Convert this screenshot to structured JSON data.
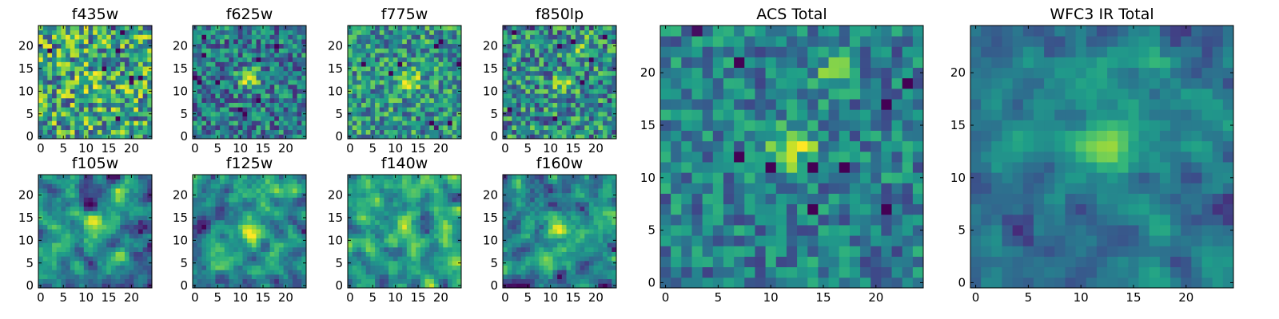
{
  "figure": {
    "background": "#ffffff",
    "colormap": "viridis"
  },
  "chart_data": [
    {
      "type": "heatmap",
      "title": "f435w",
      "size": 25,
      "xticks": [
        0,
        5,
        10,
        15,
        20
      ],
      "yticks": [
        0,
        5,
        10,
        15,
        20
      ],
      "xlim": [
        0,
        24
      ],
      "ylim": [
        0,
        24
      ],
      "seed": 11,
      "noise": 0.55,
      "smooth": 0,
      "sources": [
        {
          "x": 12,
          "y": 12,
          "amp": 0.15,
          "sigma": 2.0
        }
      ],
      "vmin": -0.2,
      "vmax": 1.2,
      "base": 0.62
    },
    {
      "type": "heatmap",
      "title": "f625w",
      "size": 25,
      "xticks": [
        0,
        5,
        10,
        15,
        20
      ],
      "yticks": [
        0,
        5,
        10,
        15,
        20
      ],
      "xlim": [
        0,
        24
      ],
      "ylim": [
        0,
        24
      ],
      "seed": 23,
      "noise": 0.45,
      "smooth": 0,
      "sources": [
        {
          "x": 12,
          "y": 13,
          "amp": 0.8,
          "sigma": 1.6
        }
      ],
      "vmin": -0.2,
      "vmax": 1.3,
      "base": 0.42
    },
    {
      "type": "heatmap",
      "title": "f775w",
      "size": 25,
      "xticks": [
        0,
        5,
        10,
        15,
        20
      ],
      "yticks": [
        0,
        5,
        10,
        15,
        20
      ],
      "xlim": [
        0,
        24
      ],
      "ylim": [
        0,
        24
      ],
      "seed": 37,
      "noise": 0.45,
      "smooth": 0,
      "sources": [
        {
          "x": 13,
          "y": 12,
          "amp": 0.7,
          "sigma": 1.6
        }
      ],
      "vmin": -0.2,
      "vmax": 1.3,
      "base": 0.58
    },
    {
      "type": "heatmap",
      "title": "f850lp",
      "size": 25,
      "xticks": [
        0,
        5,
        10,
        15,
        20
      ],
      "yticks": [
        0,
        5,
        10,
        15,
        20
      ],
      "xlim": [
        0,
        24
      ],
      "ylim": [
        0,
        24
      ],
      "seed": 41,
      "noise": 0.5,
      "smooth": 0,
      "sources": [
        {
          "x": 13,
          "y": 12,
          "amp": 0.5,
          "sigma": 1.6
        },
        {
          "x": 17,
          "y": 20,
          "amp": 0.35,
          "sigma": 1.5
        }
      ],
      "vmin": -0.2,
      "vmax": 1.3,
      "base": 0.52
    },
    {
      "type": "heatmap",
      "title": "f105w",
      "size": 25,
      "xticks": [
        0,
        5,
        10,
        15,
        20
      ],
      "yticks": [
        0,
        5,
        10,
        15,
        20
      ],
      "xlim": [
        0,
        24
      ],
      "ylim": [
        0,
        24
      ],
      "seed": 53,
      "noise": 0.55,
      "smooth": 1,
      "sources": [
        {
          "x": 12,
          "y": 13,
          "amp": 0.55,
          "sigma": 2.0
        },
        {
          "x": 18,
          "y": 21,
          "amp": 0.5,
          "sigma": 2.0
        }
      ],
      "vmin": -0.2,
      "vmax": 1.3,
      "base": 0.5
    },
    {
      "type": "heatmap",
      "title": "f125w",
      "size": 25,
      "xticks": [
        0,
        5,
        10,
        15,
        20
      ],
      "yticks": [
        0,
        5,
        10,
        15,
        20
      ],
      "xlim": [
        0,
        24
      ],
      "ylim": [
        0,
        24
      ],
      "seed": 67,
      "noise": 0.55,
      "smooth": 1,
      "sources": [
        {
          "x": 12,
          "y": 12,
          "amp": 0.6,
          "sigma": 2.0
        },
        {
          "x": 16,
          "y": 20,
          "amp": 0.35,
          "sigma": 2.0
        }
      ],
      "vmin": -0.2,
      "vmax": 1.3,
      "base": 0.55
    },
    {
      "type": "heatmap",
      "title": "f140w",
      "size": 25,
      "xticks": [
        0,
        5,
        10,
        15,
        20
      ],
      "yticks": [
        0,
        5,
        10,
        15,
        20
      ],
      "xlim": [
        0,
        24
      ],
      "ylim": [
        0,
        24
      ],
      "seed": 79,
      "noise": 0.55,
      "smooth": 1,
      "sources": [
        {
          "x": 12,
          "y": 13,
          "amp": 0.35,
          "sigma": 2.0
        }
      ],
      "vmin": -0.2,
      "vmax": 1.3,
      "base": 0.68
    },
    {
      "type": "heatmap",
      "title": "f160w",
      "size": 25,
      "xticks": [
        0,
        5,
        10,
        15,
        20
      ],
      "yticks": [
        0,
        5,
        10,
        15,
        20
      ],
      "xlim": [
        0,
        24
      ],
      "ylim": [
        0,
        24
      ],
      "seed": 97,
      "noise": 0.55,
      "smooth": 1,
      "sources": [
        {
          "x": 12,
          "y": 12,
          "amp": 0.7,
          "sigma": 1.7
        }
      ],
      "vmin": -0.2,
      "vmax": 1.3,
      "base": 0.5
    },
    {
      "type": "heatmap",
      "title": "ACS Total",
      "size": 25,
      "xticks": [
        0,
        5,
        10,
        15,
        20
      ],
      "yticks": [
        0,
        5,
        10,
        15,
        20
      ],
      "xlim": [
        0,
        24
      ],
      "ylim": [
        0,
        24
      ],
      "seed": 131,
      "noise": 0.35,
      "smooth": 0,
      "sources": [
        {
          "x": 12,
          "y": 13,
          "amp": 0.75,
          "sigma": 1.5
        },
        {
          "x": 16,
          "y": 20,
          "amp": 0.45,
          "sigma": 1.3
        }
      ],
      "vmin": -0.2,
      "vmax": 1.3,
      "base": 0.45
    },
    {
      "type": "heatmap",
      "title": "WFC3 IR Total",
      "size": 25,
      "xticks": [
        0,
        5,
        10,
        15,
        20
      ],
      "yticks": [
        0,
        5,
        10,
        15,
        20
      ],
      "xlim": [
        0,
        24
      ],
      "ylim": [
        0,
        24
      ],
      "seed": 149,
      "noise": 0.35,
      "smooth": 1,
      "sources": [
        {
          "x": 12,
          "y": 13,
          "amp": 0.75,
          "sigma": 1.8
        },
        {
          "x": 17,
          "y": 20,
          "amp": 0.45,
          "sigma": 1.8
        }
      ],
      "vmin": -0.2,
      "vmax": 1.3,
      "base": 0.42
    }
  ]
}
